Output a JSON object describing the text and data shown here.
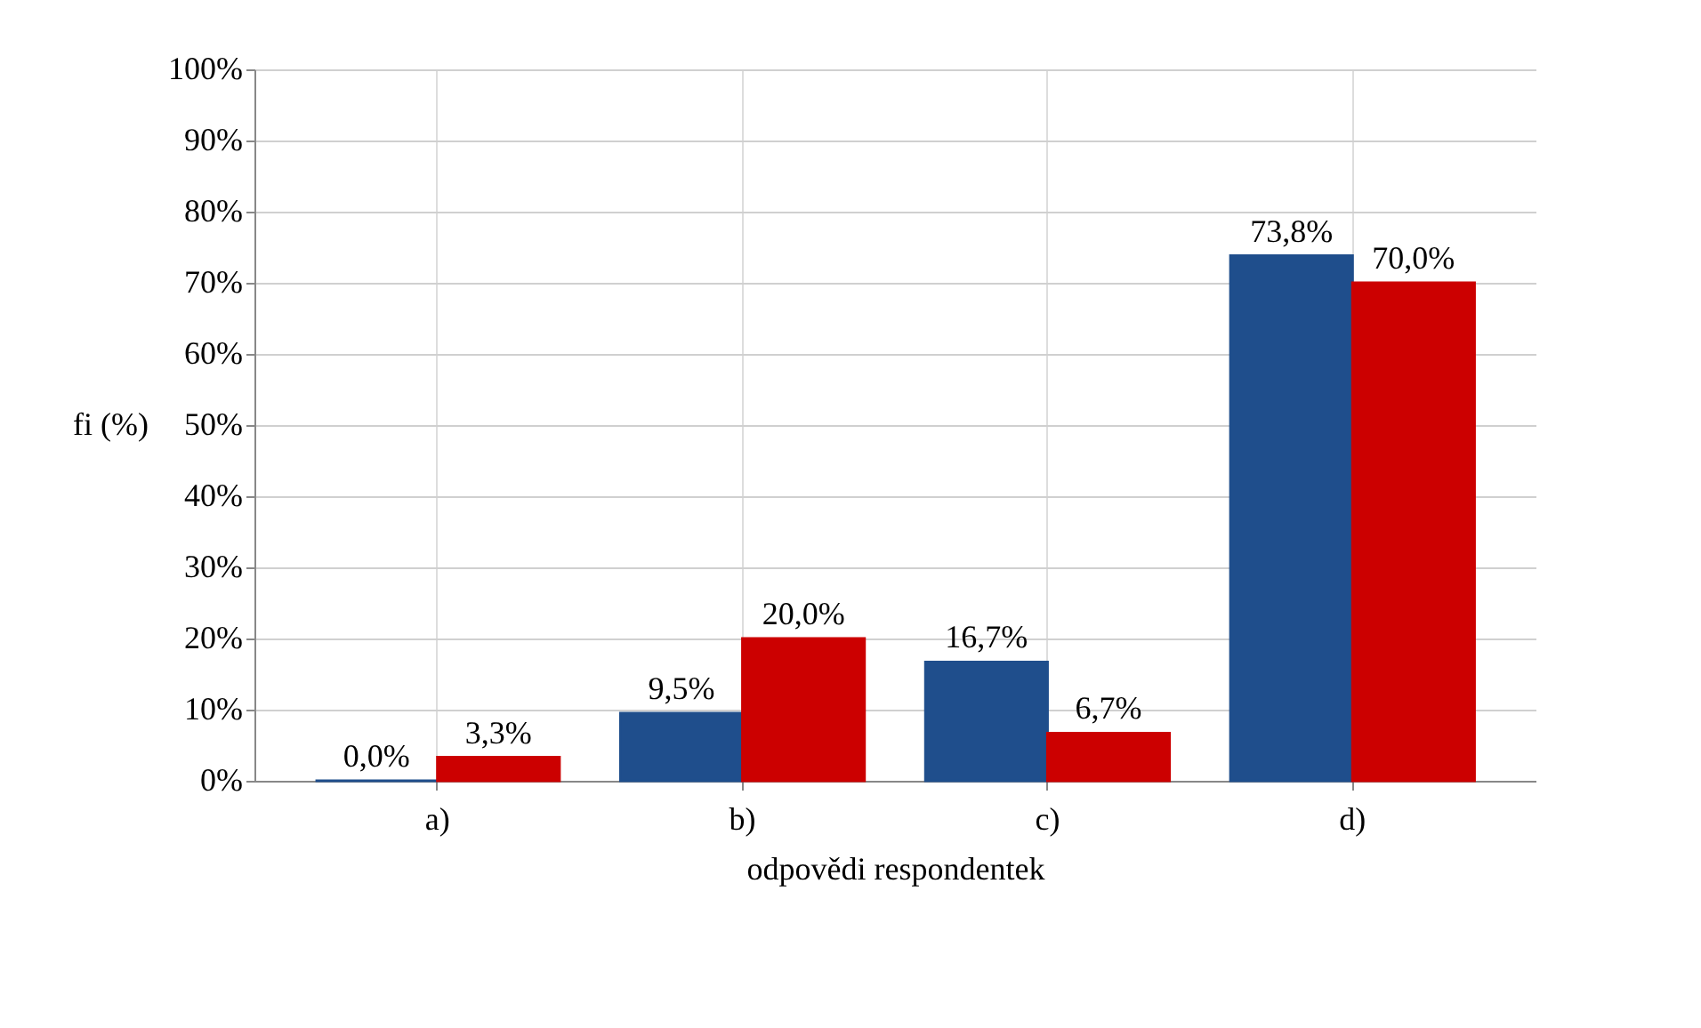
{
  "chart_data": {
    "type": "bar",
    "xlabel": "odpovědi respondentek",
    "ylabel": "fi (%)",
    "categories": [
      "a)",
      "b)",
      "c)",
      "d)"
    ],
    "series": [
      {
        "color": "#1f4e8c",
        "values": [
          0.0,
          9.5,
          16.7,
          73.8
        ],
        "value_labels": [
          "0,0%",
          "9,5%",
          "16,7%",
          "73,8%"
        ]
      },
      {
        "color": "#cc0000",
        "values": [
          3.3,
          20.0,
          6.7,
          70.0
        ],
        "value_labels": [
          "3,3%",
          "20,0%",
          "6,7%",
          "70,0%"
        ]
      }
    ],
    "ylim": [
      0,
      100
    ],
    "yticks": [
      {
        "value": 0,
        "label": "0%"
      },
      {
        "value": 10,
        "label": "10%"
      },
      {
        "value": 20,
        "label": "20%"
      },
      {
        "value": 30,
        "label": "30%"
      },
      {
        "value": 40,
        "label": "40%"
      },
      {
        "value": 50,
        "label": "50%"
      },
      {
        "value": 60,
        "label": "60%"
      },
      {
        "value": 70,
        "label": "70%"
      },
      {
        "value": 80,
        "label": "80%"
      },
      {
        "value": 90,
        "label": "90%"
      },
      {
        "value": 100,
        "label": "100%"
      }
    ],
    "grid": true,
    "legend": false
  }
}
